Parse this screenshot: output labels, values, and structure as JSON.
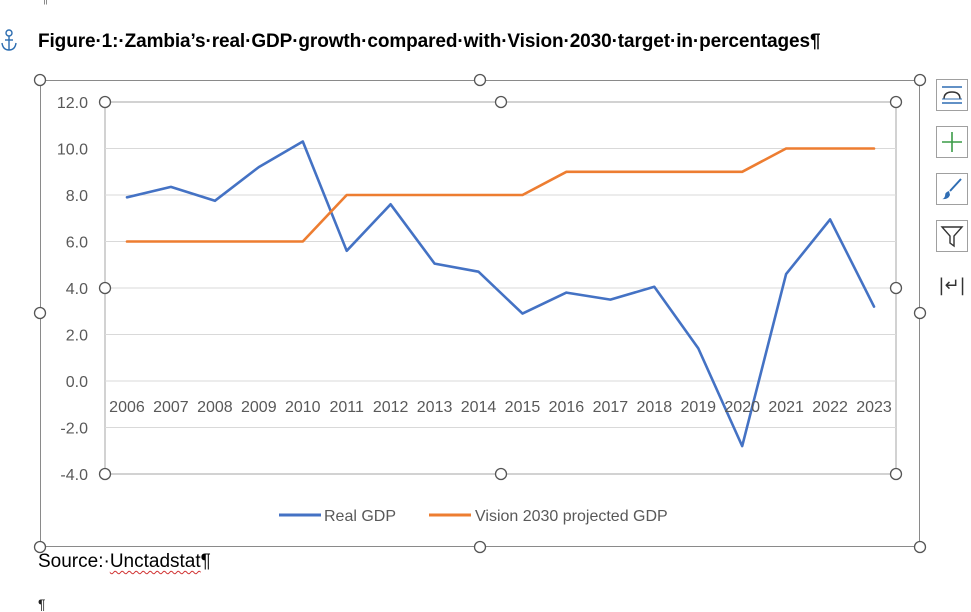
{
  "document": {
    "caption": "Figure·1:·Zambia’s·real·GDP·growth·compared·with·Vision·2030·target·in·percentages¶",
    "source_prefix": "Source:·",
    "source_link": "Unctadstat",
    "source_suffix": "¶",
    "paragraph_mark": "¶"
  },
  "chart_tools": {
    "layout_options": "layout-options-icon",
    "chart_elements": "plus-icon",
    "chart_styles": "paintbrush-icon",
    "chart_filters": "funnel-icon",
    "return_glyph": "|↵|"
  },
  "colors": {
    "real_gdp": "#4472C4",
    "vision_gdp": "#ED7D31",
    "grid": "#d9d9d9",
    "axis_text": "#595959"
  },
  "chart_data": {
    "type": "line",
    "categories": [
      "2006",
      "2007",
      "2008",
      "2009",
      "2010",
      "2011",
      "2012",
      "2013",
      "2014",
      "2015",
      "2016",
      "2017",
      "2018",
      "2019",
      "2020",
      "2021",
      "2022",
      "2023"
    ],
    "yticks": [
      "12.0",
      "10.0",
      "8.0",
      "6.0",
      "4.0",
      "2.0",
      "0.0",
      "-2.0",
      "-4.0"
    ],
    "ylim": [
      -4,
      12
    ],
    "grid": true,
    "legend": "bottom",
    "series": [
      {
        "name": "Real GDP",
        "values": [
          7.9,
          8.35,
          7.75,
          9.2,
          10.3,
          5.6,
          7.6,
          5.05,
          4.7,
          2.9,
          3.8,
          3.5,
          4.05,
          1.4,
          -2.8,
          4.6,
          6.95,
          3.2
        ]
      },
      {
        "name": "Vision 2030 projected GDP",
        "values": [
          6,
          6,
          6,
          6,
          6,
          8,
          8,
          8,
          8,
          8,
          9,
          9,
          9,
          9,
          9,
          10,
          10,
          10
        ]
      }
    ]
  }
}
